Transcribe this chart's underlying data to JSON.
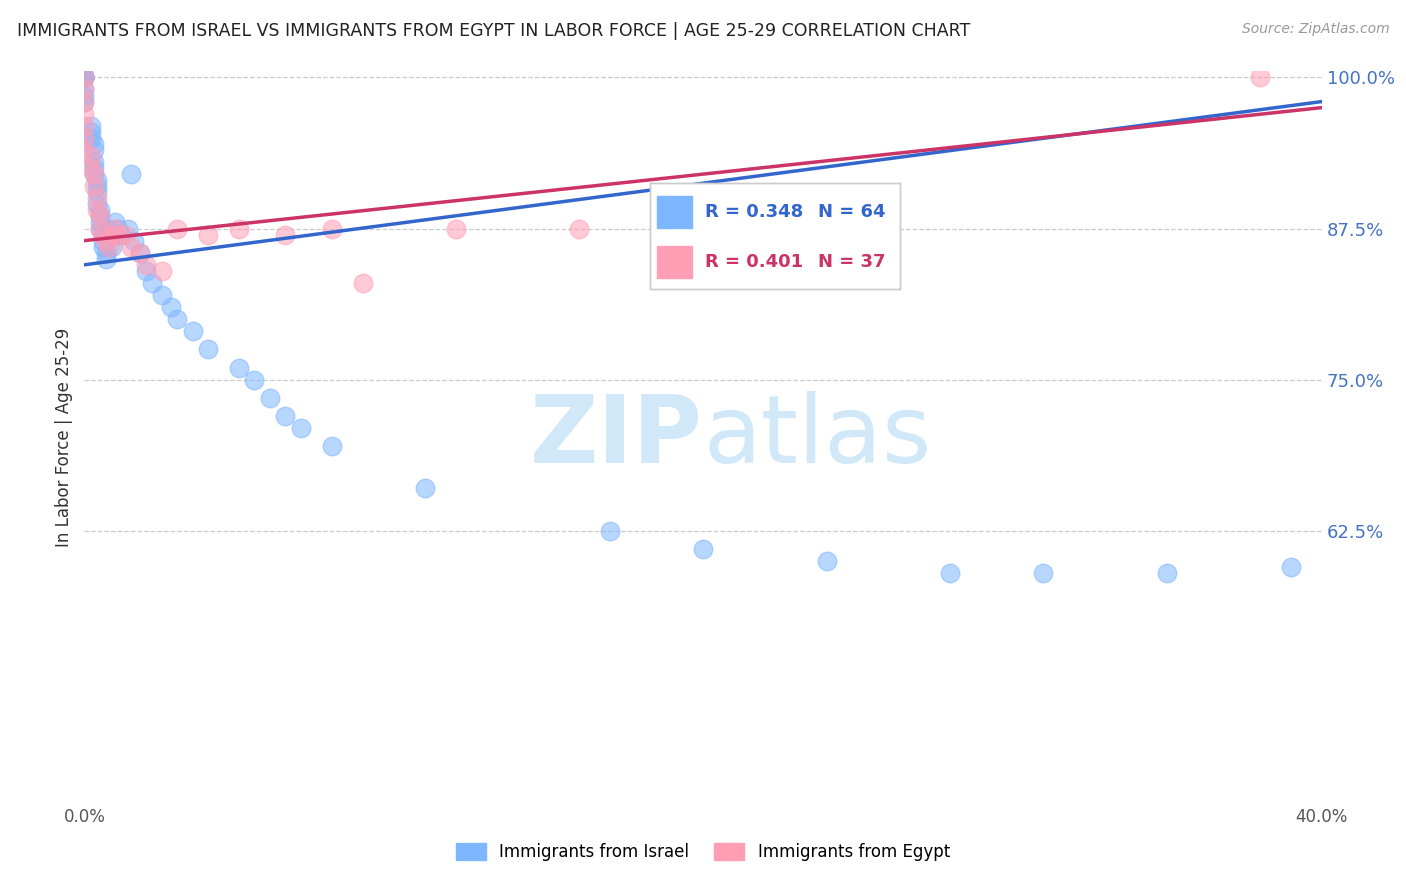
{
  "title": "IMMIGRANTS FROM ISRAEL VS IMMIGRANTS FROM EGYPT IN LABOR FORCE | AGE 25-29 CORRELATION CHART",
  "source_text": "Source: ZipAtlas.com",
  "ylabel": "In Labor Force | Age 25-29",
  "xlim": [
    0.0,
    0.4
  ],
  "ylim": [
    0.4,
    1.005
  ],
  "grid_yticks": [
    0.625,
    0.75,
    0.875,
    1.0
  ],
  "grid_color": "#cccccc",
  "background_color": "#ffffff",
  "israel_color": "#7EB6FF",
  "egypt_color": "#FF9EB5",
  "israel_line_color": "#3366CC",
  "egypt_line_color": "#CC3366",
  "israel_R": 0.348,
  "israel_N": 64,
  "egypt_R": 0.401,
  "egypt_N": 37,
  "watermark_color": "#d0e8f8",
  "legend_israel_label": "Immigrants from Israel",
  "legend_egypt_label": "Immigrants from Egypt",
  "israel_x": [
    0.0,
    0.0,
    0.0,
    0.0,
    0.0,
    0.0,
    0.0,
    0.0,
    0.0,
    0.0,
    0.002,
    0.002,
    0.002,
    0.003,
    0.003,
    0.003,
    0.003,
    0.003,
    0.004,
    0.004,
    0.004,
    0.004,
    0.005,
    0.005,
    0.005,
    0.005,
    0.006,
    0.006,
    0.006,
    0.007,
    0.007,
    0.008,
    0.008,
    0.009,
    0.009,
    0.01,
    0.01,
    0.011,
    0.012,
    0.014,
    0.015,
    0.016,
    0.018,
    0.02,
    0.022,
    0.025,
    0.028,
    0.03,
    0.035,
    0.04,
    0.05,
    0.055,
    0.06,
    0.065,
    0.07,
    0.08,
    0.11,
    0.17,
    0.2,
    0.24,
    0.28,
    0.31,
    0.35,
    0.39
  ],
  "israel_y": [
    1.0,
    1.0,
    1.0,
    1.0,
    1.0,
    1.0,
    1.0,
    0.99,
    0.985,
    0.98,
    0.96,
    0.955,
    0.95,
    0.945,
    0.94,
    0.93,
    0.925,
    0.92,
    0.915,
    0.91,
    0.905,
    0.895,
    0.89,
    0.885,
    0.88,
    0.875,
    0.87,
    0.865,
    0.86,
    0.855,
    0.85,
    0.875,
    0.87,
    0.87,
    0.86,
    0.88,
    0.87,
    0.875,
    0.87,
    0.875,
    0.92,
    0.865,
    0.855,
    0.84,
    0.83,
    0.82,
    0.81,
    0.8,
    0.79,
    0.775,
    0.76,
    0.75,
    0.735,
    0.72,
    0.71,
    0.695,
    0.66,
    0.625,
    0.61,
    0.6,
    0.59,
    0.59,
    0.59,
    0.595
  ],
  "egypt_x": [
    0.0,
    0.0,
    0.0,
    0.0,
    0.0,
    0.0,
    0.0,
    0.002,
    0.002,
    0.003,
    0.003,
    0.004,
    0.004,
    0.005,
    0.005,
    0.006,
    0.007,
    0.008,
    0.009,
    0.01,
    0.011,
    0.013,
    0.015,
    0.018,
    0.02,
    0.025,
    0.03,
    0.04,
    0.05,
    0.065,
    0.08,
    0.09,
    0.12,
    0.16,
    0.19,
    0.22,
    0.38
  ],
  "egypt_y": [
    1.0,
    0.99,
    0.98,
    0.97,
    0.96,
    0.95,
    0.94,
    0.935,
    0.925,
    0.92,
    0.91,
    0.9,
    0.89,
    0.885,
    0.875,
    0.87,
    0.865,
    0.86,
    0.87,
    0.875,
    0.87,
    0.87,
    0.86,
    0.855,
    0.845,
    0.84,
    0.875,
    0.87,
    0.875,
    0.87,
    0.875,
    0.83,
    0.875,
    0.875,
    0.875,
    0.875,
    1.0
  ],
  "israel_line_x": [
    0.0,
    0.4
  ],
  "israel_line_y": [
    0.845,
    0.98
  ],
  "egypt_line_x": [
    0.0,
    0.4
  ],
  "egypt_line_y": [
    0.865,
    0.975
  ]
}
